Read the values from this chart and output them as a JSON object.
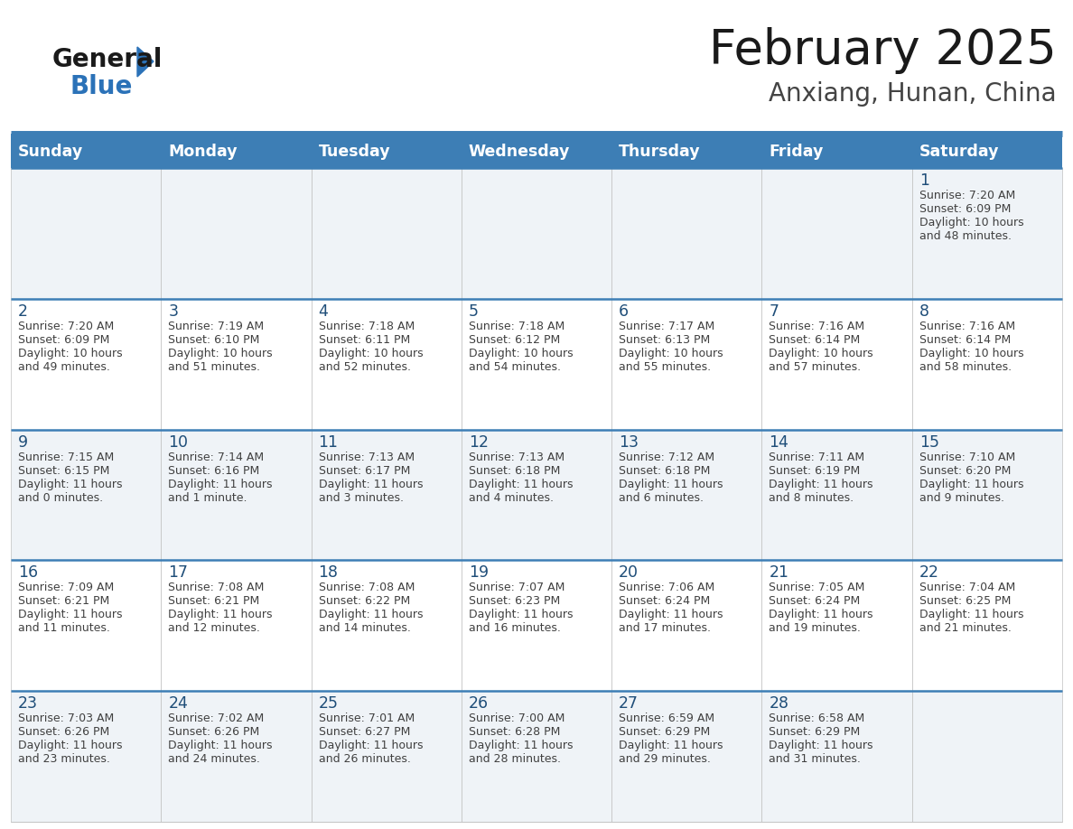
{
  "title": "February 2025",
  "subtitle": "Anxiang, Hunan, China",
  "header_bg": "#3d7eb5",
  "header_fg": "#ffffff",
  "bg_color": "#ffffff",
  "row_bg_odd": "#eff3f7",
  "row_bg_even": "#ffffff",
  "date_color": "#1f4e79",
  "info_color": "#404040",
  "border_color": "#3d7eb5",
  "thin_border": "#c0c0c0",
  "logo_text_color": "#1a1a1a",
  "logo_blue_color": "#2b72b8",
  "title_color": "#1a1a1a",
  "subtitle_color": "#444444",
  "day_headers": [
    "Sunday",
    "Monday",
    "Tuesday",
    "Wednesday",
    "Thursday",
    "Friday",
    "Saturday"
  ],
  "days": [
    {
      "day": 1,
      "col": 6,
      "row": 0,
      "sunrise": "7:20 AM",
      "sunset": "6:09 PM",
      "daylight_line1": "Daylight: 10 hours",
      "daylight_line2": "and 48 minutes."
    },
    {
      "day": 2,
      "col": 0,
      "row": 1,
      "sunrise": "7:20 AM",
      "sunset": "6:09 PM",
      "daylight_line1": "Daylight: 10 hours",
      "daylight_line2": "and 49 minutes."
    },
    {
      "day": 3,
      "col": 1,
      "row": 1,
      "sunrise": "7:19 AM",
      "sunset": "6:10 PM",
      "daylight_line1": "Daylight: 10 hours",
      "daylight_line2": "and 51 minutes."
    },
    {
      "day": 4,
      "col": 2,
      "row": 1,
      "sunrise": "7:18 AM",
      "sunset": "6:11 PM",
      "daylight_line1": "Daylight: 10 hours",
      "daylight_line2": "and 52 minutes."
    },
    {
      "day": 5,
      "col": 3,
      "row": 1,
      "sunrise": "7:18 AM",
      "sunset": "6:12 PM",
      "daylight_line1": "Daylight: 10 hours",
      "daylight_line2": "and 54 minutes."
    },
    {
      "day": 6,
      "col": 4,
      "row": 1,
      "sunrise": "7:17 AM",
      "sunset": "6:13 PM",
      "daylight_line1": "Daylight: 10 hours",
      "daylight_line2": "and 55 minutes."
    },
    {
      "day": 7,
      "col": 5,
      "row": 1,
      "sunrise": "7:16 AM",
      "sunset": "6:14 PM",
      "daylight_line1": "Daylight: 10 hours",
      "daylight_line2": "and 57 minutes."
    },
    {
      "day": 8,
      "col": 6,
      "row": 1,
      "sunrise": "7:16 AM",
      "sunset": "6:14 PM",
      "daylight_line1": "Daylight: 10 hours",
      "daylight_line2": "and 58 minutes."
    },
    {
      "day": 9,
      "col": 0,
      "row": 2,
      "sunrise": "7:15 AM",
      "sunset": "6:15 PM",
      "daylight_line1": "Daylight: 11 hours",
      "daylight_line2": "and 0 minutes."
    },
    {
      "day": 10,
      "col": 1,
      "row": 2,
      "sunrise": "7:14 AM",
      "sunset": "6:16 PM",
      "daylight_line1": "Daylight: 11 hours",
      "daylight_line2": "and 1 minute."
    },
    {
      "day": 11,
      "col": 2,
      "row": 2,
      "sunrise": "7:13 AM",
      "sunset": "6:17 PM",
      "daylight_line1": "Daylight: 11 hours",
      "daylight_line2": "and 3 minutes."
    },
    {
      "day": 12,
      "col": 3,
      "row": 2,
      "sunrise": "7:13 AM",
      "sunset": "6:18 PM",
      "daylight_line1": "Daylight: 11 hours",
      "daylight_line2": "and 4 minutes."
    },
    {
      "day": 13,
      "col": 4,
      "row": 2,
      "sunrise": "7:12 AM",
      "sunset": "6:18 PM",
      "daylight_line1": "Daylight: 11 hours",
      "daylight_line2": "and 6 minutes."
    },
    {
      "day": 14,
      "col": 5,
      "row": 2,
      "sunrise": "7:11 AM",
      "sunset": "6:19 PM",
      "daylight_line1": "Daylight: 11 hours",
      "daylight_line2": "and 8 minutes."
    },
    {
      "day": 15,
      "col": 6,
      "row": 2,
      "sunrise": "7:10 AM",
      "sunset": "6:20 PM",
      "daylight_line1": "Daylight: 11 hours",
      "daylight_line2": "and 9 minutes."
    },
    {
      "day": 16,
      "col": 0,
      "row": 3,
      "sunrise": "7:09 AM",
      "sunset": "6:21 PM",
      "daylight_line1": "Daylight: 11 hours",
      "daylight_line2": "and 11 minutes."
    },
    {
      "day": 17,
      "col": 1,
      "row": 3,
      "sunrise": "7:08 AM",
      "sunset": "6:21 PM",
      "daylight_line1": "Daylight: 11 hours",
      "daylight_line2": "and 12 minutes."
    },
    {
      "day": 18,
      "col": 2,
      "row": 3,
      "sunrise": "7:08 AM",
      "sunset": "6:22 PM",
      "daylight_line1": "Daylight: 11 hours",
      "daylight_line2": "and 14 minutes."
    },
    {
      "day": 19,
      "col": 3,
      "row": 3,
      "sunrise": "7:07 AM",
      "sunset": "6:23 PM",
      "daylight_line1": "Daylight: 11 hours",
      "daylight_line2": "and 16 minutes."
    },
    {
      "day": 20,
      "col": 4,
      "row": 3,
      "sunrise": "7:06 AM",
      "sunset": "6:24 PM",
      "daylight_line1": "Daylight: 11 hours",
      "daylight_line2": "and 17 minutes."
    },
    {
      "day": 21,
      "col": 5,
      "row": 3,
      "sunrise": "7:05 AM",
      "sunset": "6:24 PM",
      "daylight_line1": "Daylight: 11 hours",
      "daylight_line2": "and 19 minutes."
    },
    {
      "day": 22,
      "col": 6,
      "row": 3,
      "sunrise": "7:04 AM",
      "sunset": "6:25 PM",
      "daylight_line1": "Daylight: 11 hours",
      "daylight_line2": "and 21 minutes."
    },
    {
      "day": 23,
      "col": 0,
      "row": 4,
      "sunrise": "7:03 AM",
      "sunset": "6:26 PM",
      "daylight_line1": "Daylight: 11 hours",
      "daylight_line2": "and 23 minutes."
    },
    {
      "day": 24,
      "col": 1,
      "row": 4,
      "sunrise": "7:02 AM",
      "sunset": "6:26 PM",
      "daylight_line1": "Daylight: 11 hours",
      "daylight_line2": "and 24 minutes."
    },
    {
      "day": 25,
      "col": 2,
      "row": 4,
      "sunrise": "7:01 AM",
      "sunset": "6:27 PM",
      "daylight_line1": "Daylight: 11 hours",
      "daylight_line2": "and 26 minutes."
    },
    {
      "day": 26,
      "col": 3,
      "row": 4,
      "sunrise": "7:00 AM",
      "sunset": "6:28 PM",
      "daylight_line1": "Daylight: 11 hours",
      "daylight_line2": "and 28 minutes."
    },
    {
      "day": 27,
      "col": 4,
      "row": 4,
      "sunrise": "6:59 AM",
      "sunset": "6:29 PM",
      "daylight_line1": "Daylight: 11 hours",
      "daylight_line2": "and 29 minutes."
    },
    {
      "day": 28,
      "col": 5,
      "row": 4,
      "sunrise": "6:58 AM",
      "sunset": "6:29 PM",
      "daylight_line1": "Daylight: 11 hours",
      "daylight_line2": "and 31 minutes."
    }
  ],
  "num_rows": 5,
  "num_cols": 7
}
